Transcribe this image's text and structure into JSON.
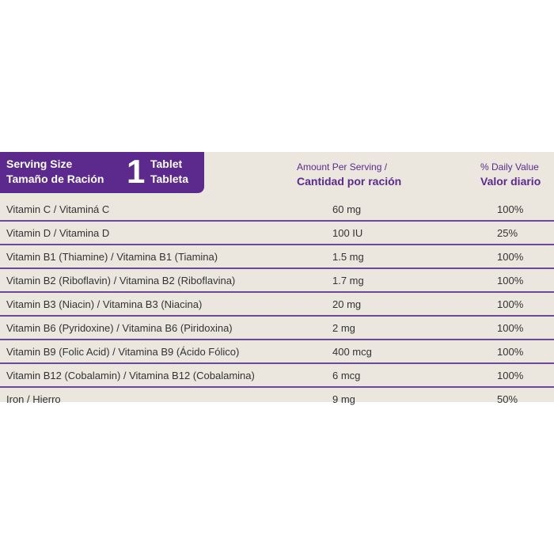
{
  "serving": {
    "label_en": "Serving Size",
    "label_es": "Tamaño de Ración",
    "quantity": "1",
    "unit_en": "Tablet",
    "unit_es": "Tableta"
  },
  "headers": {
    "amount_en": "Amount Per Serving /",
    "amount_es": "Cantidad por ración",
    "dv_en": "% Daily Value",
    "dv_es": "Valor diario"
  },
  "colors": {
    "accent": "#5b2a8c",
    "background": "#ebe7df"
  },
  "rows": [
    {
      "name": "Vitamin C / Vitaminá C",
      "amount": "60 mg",
      "dv": "100%"
    },
    {
      "name": "Vitamin D / Vitamina D",
      "amount": "100 IU",
      "dv": "25%"
    },
    {
      "name": "Vitamin B1 (Thiamine) / Vitamina B1 (Tiamina)",
      "amount": "1.5 mg",
      "dv": "100%"
    },
    {
      "name": "Vitamin B2 (Riboflavin) / Vitamina B2 (Riboflavina)",
      "amount": "1.7 mg",
      "dv": "100%"
    },
    {
      "name": "Vitamin B3 (Niacin) / Vitamina B3 (Niacina)",
      "amount": "20 mg",
      "dv": "100%"
    },
    {
      "name": "Vitamin B6 (Pyridoxine) / Vitamina B6 (Piridoxina)",
      "amount": "2 mg",
      "dv": "100%"
    },
    {
      "name": "Vitamin B9 (Folic Acid) / Vitamina B9 (Ácido Fólico)",
      "amount": "400 mcg",
      "dv": "100%"
    },
    {
      "name": "Vitamin B12 (Cobalamin) / Vitamina B12 (Cobalamina)",
      "amount": "6 mcg",
      "dv": "100%"
    },
    {
      "name": "Iron / Hierro",
      "amount": "9 mg",
      "dv": "50%"
    }
  ]
}
